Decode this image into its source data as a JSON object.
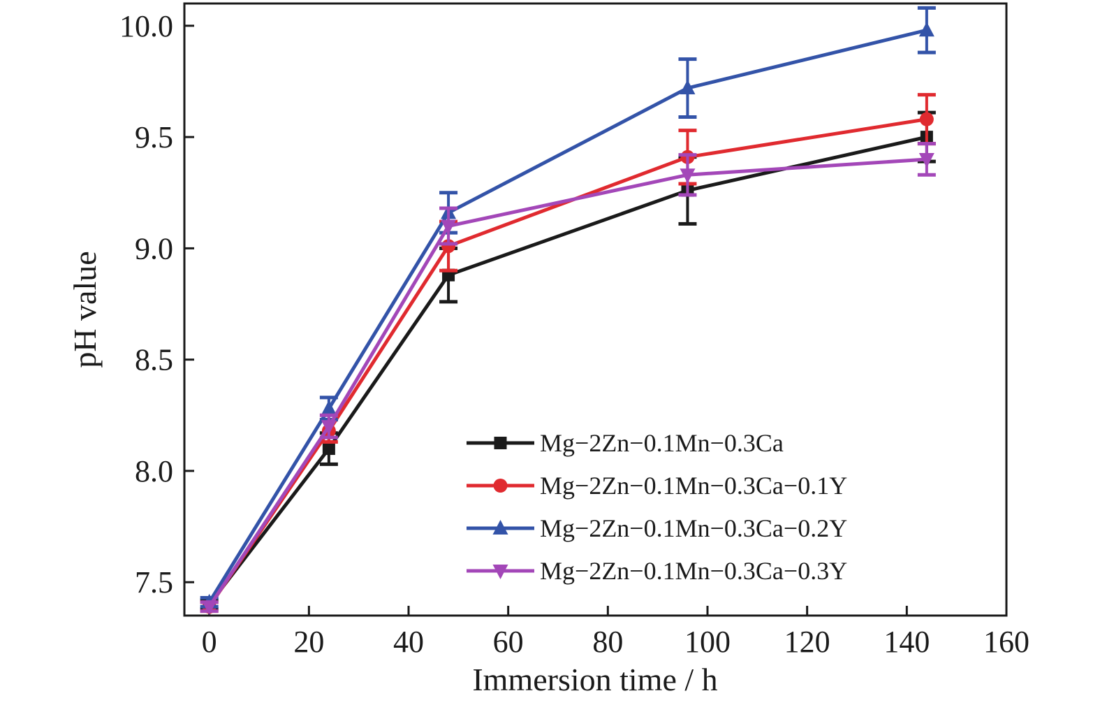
{
  "chart_data": {
    "type": "line",
    "xlabel": "Immersion time / h",
    "ylabel": "pH value",
    "xlim": [
      -5,
      160
    ],
    "ylim": [
      7.35,
      10.1
    ],
    "xticks": [
      0,
      20,
      40,
      60,
      80,
      100,
      120,
      140,
      160
    ],
    "yticks": [
      7.5,
      8.0,
      8.5,
      9.0,
      9.5,
      10.0
    ],
    "xtick_labels": [
      "0",
      "20",
      "40",
      "60",
      "80",
      "100",
      "120",
      "140",
      "160"
    ],
    "ytick_labels": [
      "7.5",
      "8.0",
      "8.5",
      "9.0",
      "9.5",
      "10.0"
    ],
    "grid": false,
    "legend_position": "lower-right",
    "x": [
      0,
      24,
      48,
      96,
      144
    ],
    "series": [
      {
        "name": "Mg−2Zn−0.1Mn−0.3Ca",
        "color": "#1a1a1a",
        "marker": "square",
        "values": [
          7.4,
          8.1,
          8.88,
          9.26,
          9.5
        ],
        "errors": [
          0.02,
          0.07,
          0.12,
          0.15,
          0.11
        ]
      },
      {
        "name": "Mg−2Zn−0.1Mn−0.3Ca−0.1Y",
        "color": "#e02a2f",
        "marker": "circle",
        "values": [
          7.39,
          8.18,
          9.01,
          9.41,
          9.58
        ],
        "errors": [
          0.02,
          0.05,
          0.11,
          0.12,
          0.11
        ]
      },
      {
        "name": "Mg−2Zn−0.1Mn−0.3Ca−0.2Y",
        "color": "#3353a8",
        "marker": "triangle-up",
        "values": [
          7.41,
          8.28,
          9.16,
          9.72,
          9.98
        ],
        "errors": [
          0.02,
          0.05,
          0.09,
          0.13,
          0.1
        ]
      },
      {
        "name": "Mg−2Zn−0.1Mn−0.3Ca−0.3Y",
        "color": "#a347b8",
        "marker": "triangle-down",
        "values": [
          7.39,
          8.2,
          9.1,
          9.33,
          9.4
        ],
        "errors": [
          0.02,
          0.05,
          0.08,
          0.09,
          0.07
        ]
      }
    ]
  }
}
